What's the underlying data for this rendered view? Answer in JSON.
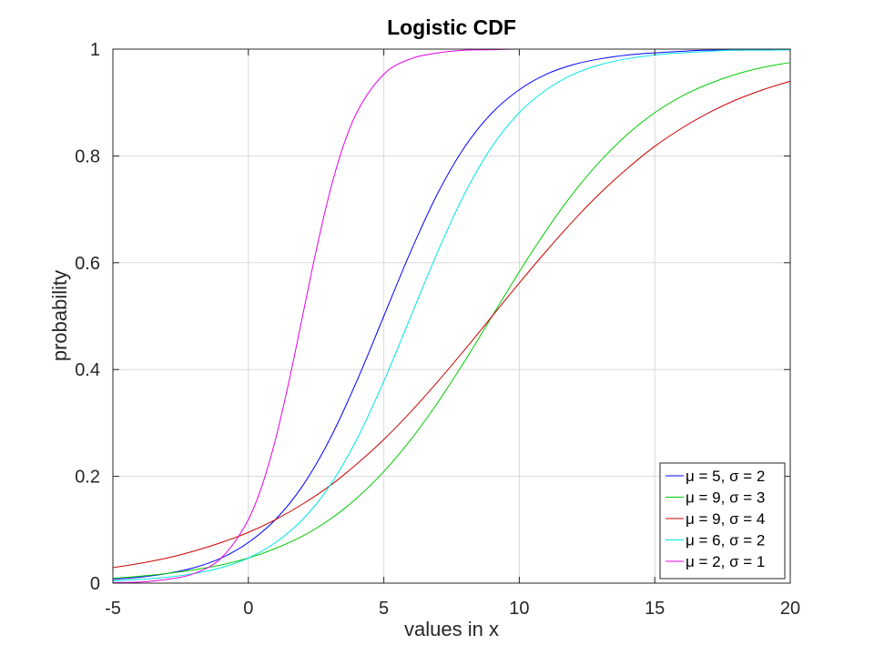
{
  "chart_data": {
    "type": "line",
    "title": "Logistic CDF",
    "xlabel": "values in x",
    "ylabel": "probability",
    "xlim": [
      -5,
      20
    ],
    "ylim": [
      0,
      1
    ],
    "xticks": [
      -5,
      0,
      5,
      10,
      15,
      20
    ],
    "yticks": [
      0,
      0.2,
      0.4,
      0.6,
      0.8,
      1
    ],
    "xtick_labels": [
      "-5",
      "0",
      "5",
      "10",
      "15",
      "20"
    ],
    "ytick_labels": [
      "0",
      "0.2",
      "0.4",
      "0.6",
      "0.8",
      "1"
    ],
    "grid": true,
    "legend_position": "bottom-right",
    "series": [
      {
        "name": "μ = 5, σ = 2",
        "color": "#0000ff",
        "x": [
          -5,
          -4,
          -3,
          -2,
          -1,
          0,
          1,
          2,
          3,
          4,
          5,
          6,
          7,
          8,
          9,
          10,
          11,
          12,
          13,
          14,
          15,
          16,
          17,
          18,
          19,
          20
        ],
        "y": [
          0.007,
          0.011,
          0.018,
          0.029,
          0.047,
          0.076,
          0.119,
          0.182,
          0.269,
          0.378,
          0.5,
          0.622,
          0.731,
          0.818,
          0.881,
          0.924,
          0.953,
          0.971,
          0.982,
          0.989,
          0.993,
          0.996,
          0.998,
          0.998,
          0.999,
          0.999
        ]
      },
      {
        "name": "μ = 9, σ = 3",
        "color": "#00cc00",
        "x": [
          -5,
          -4,
          -3,
          -2,
          -1,
          0,
          1,
          2,
          3,
          4,
          5,
          6,
          7,
          8,
          9,
          10,
          11,
          12,
          13,
          14,
          15,
          16,
          17,
          18,
          19,
          20
        ],
        "y": [
          0.009,
          0.013,
          0.018,
          0.025,
          0.034,
          0.047,
          0.065,
          0.088,
          0.119,
          0.159,
          0.209,
          0.269,
          0.339,
          0.417,
          0.5,
          0.583,
          0.661,
          0.731,
          0.791,
          0.841,
          0.881,
          0.912,
          0.935,
          0.953,
          0.966,
          0.975
        ]
      },
      {
        "name": "μ = 9, σ = 4",
        "color": "#cc0000",
        "x": [
          -5,
          -4,
          -3,
          -2,
          -1,
          0,
          1,
          2,
          3,
          4,
          5,
          6,
          7,
          8,
          9,
          10,
          11,
          12,
          13,
          14,
          15,
          16,
          17,
          18,
          19,
          20
        ],
        "y": [
          0.029,
          0.037,
          0.047,
          0.06,
          0.076,
          0.095,
          0.119,
          0.148,
          0.182,
          0.223,
          0.269,
          0.321,
          0.378,
          0.438,
          0.5,
          0.562,
          0.622,
          0.679,
          0.731,
          0.777,
          0.818,
          0.852,
          0.881,
          0.905,
          0.924,
          0.94
        ]
      },
      {
        "name": "μ = 6, σ = 2",
        "color": "#00e5e5",
        "x": [
          -5,
          -4,
          -3,
          -2,
          -1,
          0,
          1,
          2,
          3,
          4,
          5,
          6,
          7,
          8,
          9,
          10,
          11,
          12,
          13,
          14,
          15,
          16,
          17,
          18,
          19,
          20
        ],
        "y": [
          0.004,
          0.007,
          0.011,
          0.018,
          0.029,
          0.047,
          0.076,
          0.119,
          0.182,
          0.269,
          0.378,
          0.5,
          0.622,
          0.731,
          0.818,
          0.881,
          0.924,
          0.953,
          0.971,
          0.982,
          0.989,
          0.993,
          0.996,
          0.998,
          0.998,
          0.999
        ]
      },
      {
        "name": "μ = 2, σ = 1",
        "color": "#e500e5",
        "x": [
          -5,
          -4,
          -3,
          -2,
          -1,
          0,
          0.5,
          1,
          1.5,
          2,
          2.5,
          3,
          3.5,
          4,
          5,
          6,
          7,
          8,
          9,
          10,
          12,
          14,
          16,
          18,
          20
        ],
        "y": [
          0.001,
          0.002,
          0.007,
          0.018,
          0.047,
          0.119,
          0.182,
          0.269,
          0.378,
          0.5,
          0.622,
          0.731,
          0.818,
          0.881,
          0.953,
          0.982,
          0.993,
          0.998,
          0.999,
          1.0,
          1.0,
          1.0,
          1.0,
          1.0,
          1.0
        ]
      }
    ]
  }
}
